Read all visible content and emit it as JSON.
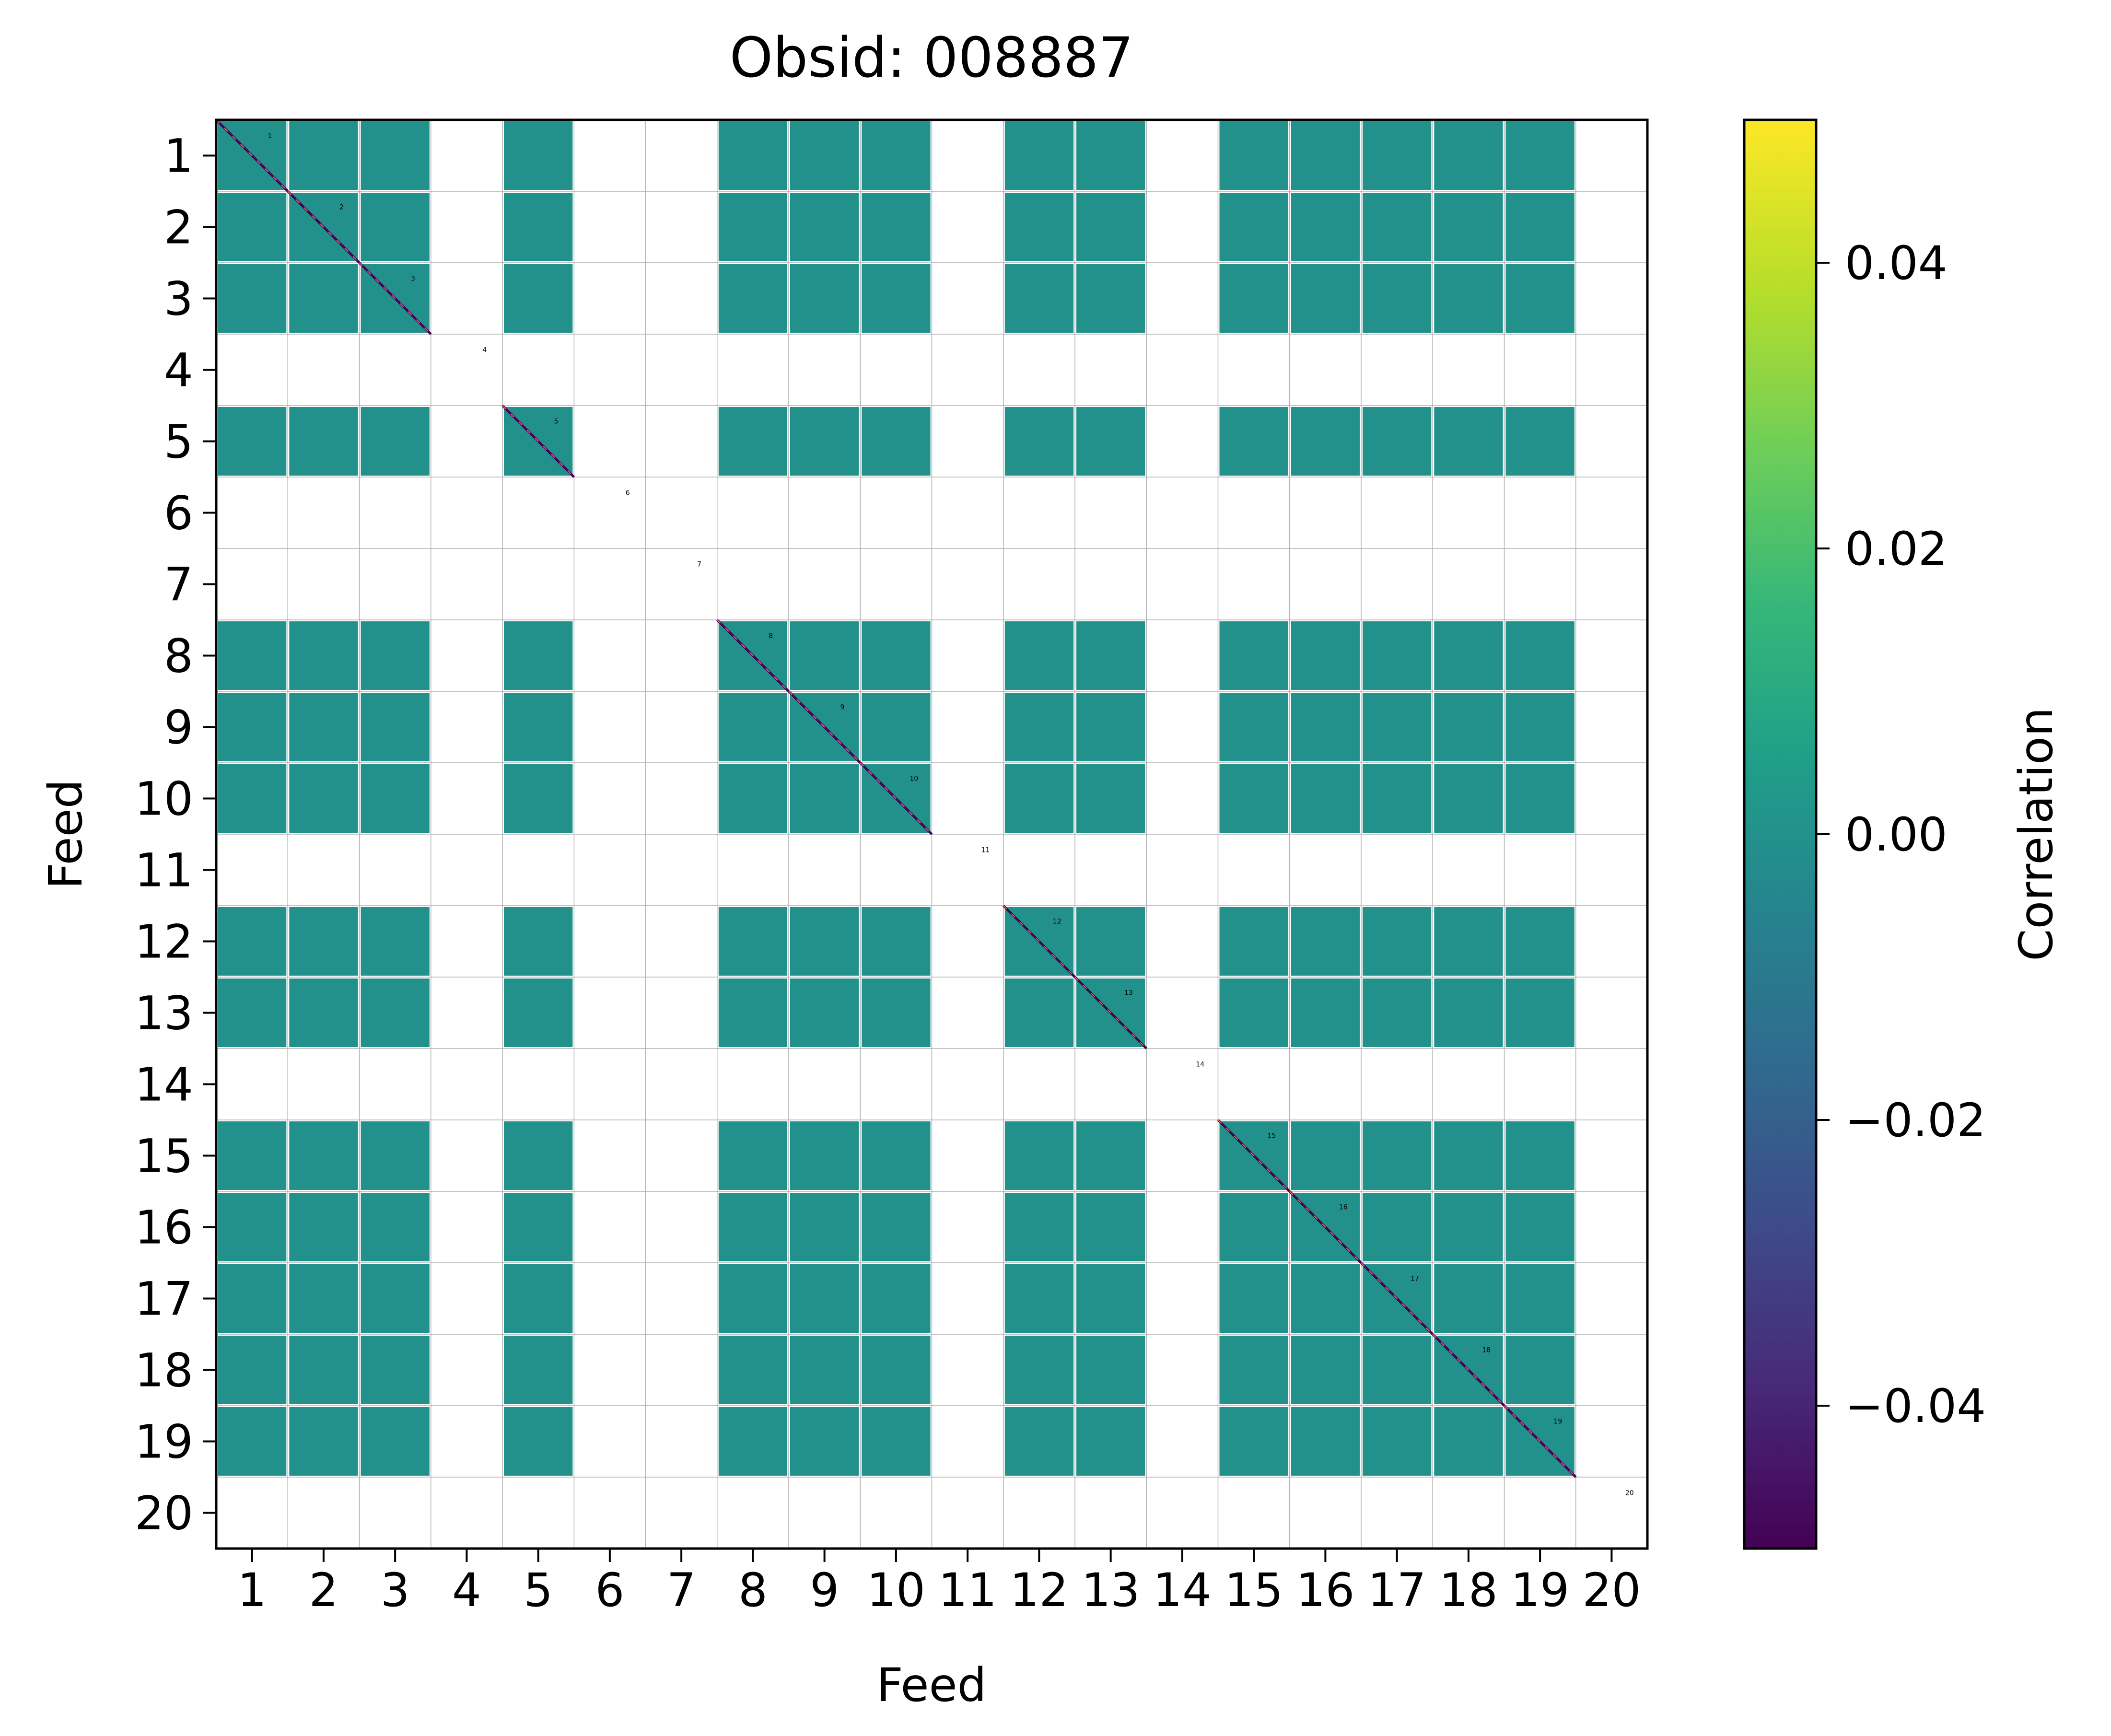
{
  "chart_data": {
    "type": "heatmap",
    "title": "Obsid: 008887",
    "xlabel": "Feed",
    "ylabel": "Feed",
    "colorbar_label": "Correlation",
    "feeds": [
      "1",
      "2",
      "3",
      "4",
      "5",
      "6",
      "7",
      "8",
      "9",
      "10",
      "11",
      "12",
      "13",
      "14",
      "15",
      "16",
      "17",
      "18",
      "19",
      "20"
    ],
    "cbar_ticks": [
      "0.04",
      "0.02",
      "0.00",
      "−0.02",
      "−0.04"
    ],
    "cbar_tick_values": [
      0.04,
      0.02,
      0.0,
      -0.02,
      -0.04
    ],
    "cbar_range": [
      -0.05,
      0.05
    ],
    "cell_value": 0.0,
    "diagonal_value": -0.05,
    "active_feeds": [
      1,
      2,
      3,
      5,
      8,
      9,
      10,
      12,
      13,
      15,
      16,
      17,
      18,
      19
    ],
    "inactive_feeds": [
      4,
      6,
      7,
      11,
      14,
      20
    ],
    "colors": {
      "cell": "#21918c",
      "diagonal": "#440154",
      "grid": "#b0b0b0",
      "axis": "#000000",
      "background": "#ffffff"
    },
    "colormap": "viridis"
  }
}
